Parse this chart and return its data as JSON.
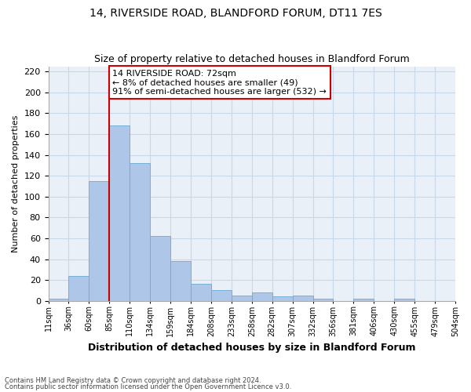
{
  "title1": "14, RIVERSIDE ROAD, BLANDFORD FORUM, DT11 7ES",
  "title2": "Size of property relative to detached houses in Blandford Forum",
  "xlabel": "Distribution of detached houses by size in Blandford Forum",
  "ylabel": "Number of detached properties",
  "bar_values": [
    2,
    24,
    115,
    168,
    132,
    62,
    38,
    16,
    10,
    5,
    8,
    4,
    5,
    2,
    0,
    2,
    0,
    2
  ],
  "x_labels": [
    "11sqm",
    "36sqm",
    "60sqm",
    "85sqm",
    "110sqm",
    "134sqm",
    "159sqm",
    "184sqm",
    "208sqm",
    "233sqm",
    "258sqm",
    "282sqm",
    "307sqm",
    "332sqm",
    "356sqm",
    "381sqm",
    "406sqm",
    "430sqm",
    "455sqm",
    "479sqm",
    "504sqm"
  ],
  "bar_color": "#aec6e8",
  "bar_edge_color": "#6aaad4",
  "grid_color": "#c8d8ea",
  "background_color": "#eaf0f8",
  "vline_color": "#cc0000",
  "annotation_text": "14 RIVERSIDE ROAD: 72sqm\n← 8% of detached houses are smaller (49)\n91% of semi-detached houses are larger (532) →",
  "annotation_box_color": "white",
  "annotation_box_edge": "#cc0000",
  "ylim": [
    0,
    225
  ],
  "yticks": [
    0,
    20,
    40,
    60,
    80,
    100,
    120,
    140,
    160,
    180,
    200,
    220
  ],
  "footnote1": "Contains HM Land Registry data © Crown copyright and database right 2024.",
  "footnote2": "Contains public sector information licensed under the Open Government Licence v3.0."
}
